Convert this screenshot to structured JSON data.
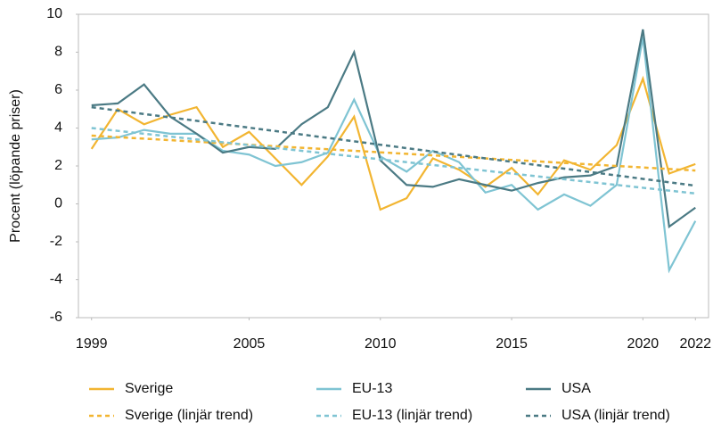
{
  "chart_data": {
    "type": "line",
    "y_label": "Procent (löpande priser)",
    "x": [
      1999,
      2000,
      2001,
      2002,
      2003,
      2004,
      2005,
      2006,
      2007,
      2008,
      2009,
      2010,
      2011,
      2012,
      2013,
      2014,
      2015,
      2016,
      2017,
      2018,
      2019,
      2020,
      2021,
      2022
    ],
    "xlim": [
      1998.5,
      2022.5
    ],
    "xticks": [
      1999,
      2005,
      2010,
      2015,
      2020,
      2022
    ],
    "ylim": [
      -6,
      10
    ],
    "yticks": [
      -6,
      -4,
      -2,
      0,
      2,
      4,
      6,
      8,
      10
    ],
    "grid": false,
    "legend": "bottom",
    "series": [
      {
        "name": "Sverige",
        "color": "#f2b531",
        "dashed": false,
        "values": [
          2.9,
          5.0,
          4.2,
          4.7,
          5.1,
          3.0,
          3.8,
          2.4,
          1.0,
          2.5,
          4.6,
          -0.3,
          0.3,
          2.4,
          1.8,
          0.9,
          1.9,
          0.5,
          2.3,
          1.8,
          3.1,
          6.6,
          1.6,
          2.1
        ]
      },
      {
        "name": "EU-13",
        "color": "#7fc4d3",
        "dashed": false,
        "values": [
          3.4,
          3.5,
          3.9,
          3.7,
          3.7,
          2.8,
          2.6,
          2.0,
          2.2,
          2.7,
          5.5,
          2.5,
          1.7,
          2.8,
          2.2,
          0.6,
          1.0,
          -0.3,
          0.5,
          -0.1,
          1.0,
          8.8,
          -3.5,
          -0.9
        ]
      },
      {
        "name": "USA",
        "color": "#4b7a84",
        "dashed": false,
        "values": [
          5.2,
          5.3,
          6.3,
          4.6,
          3.7,
          2.7,
          3.0,
          2.9,
          4.2,
          5.1,
          8.0,
          2.3,
          1.0,
          0.9,
          1.3,
          1.0,
          0.7,
          1.1,
          1.4,
          1.5,
          2.0,
          9.2,
          -1.2,
          -0.2
        ]
      },
      {
        "name": "Sverige (linjär trend)",
        "color": "#f2b531",
        "dashed": true,
        "values": [
          3.6,
          3.52,
          3.44,
          3.36,
          3.28,
          3.2,
          3.12,
          3.04,
          2.96,
          2.88,
          2.8,
          2.72,
          2.64,
          2.56,
          2.48,
          2.4,
          2.32,
          2.24,
          2.16,
          2.08,
          2.0,
          1.92,
          1.84,
          1.76
        ]
      },
      {
        "name": "EU-13 (linjär trend)",
        "color": "#7fc4d3",
        "dashed": true,
        "values": [
          4.0,
          3.85,
          3.7,
          3.55,
          3.4,
          3.25,
          3.1,
          2.95,
          2.8,
          2.65,
          2.5,
          2.35,
          2.2,
          2.05,
          1.9,
          1.75,
          1.6,
          1.45,
          1.3,
          1.15,
          1.0,
          0.85,
          0.7,
          0.55
        ]
      },
      {
        "name": "USA (linjär trend)",
        "color": "#4b7a84",
        "dashed": true,
        "values": [
          5.1,
          4.92,
          4.74,
          4.56,
          4.38,
          4.2,
          4.02,
          3.84,
          3.66,
          3.48,
          3.3,
          3.12,
          2.94,
          2.76,
          2.58,
          2.4,
          2.22,
          2.04,
          1.86,
          1.68,
          1.5,
          1.32,
          1.14,
          0.96
        ]
      }
    ]
  }
}
